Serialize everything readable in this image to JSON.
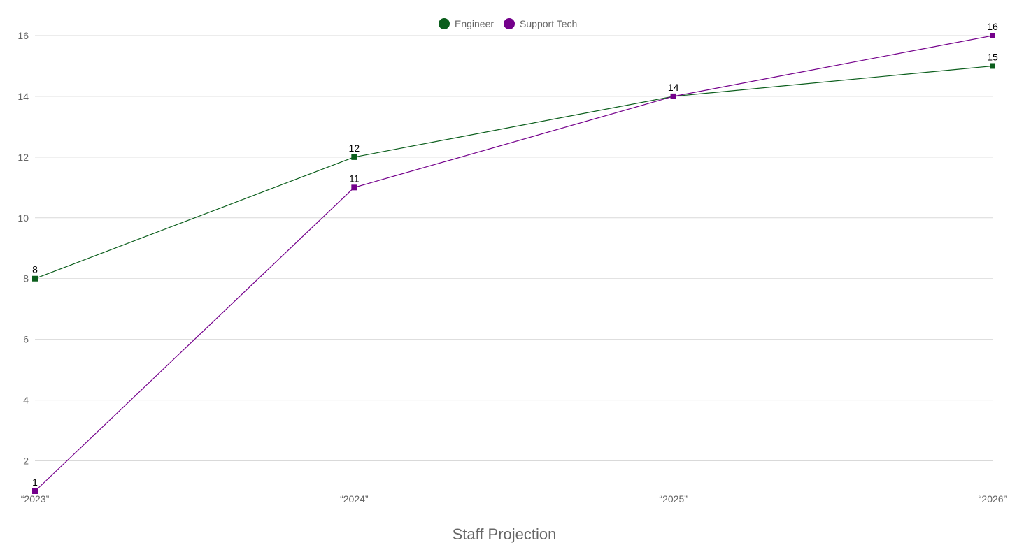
{
  "chart_data": {
    "type": "line",
    "title": "Staff Projection",
    "xlabel": "",
    "ylabel": "",
    "categories": [
      "“2023”",
      "“2024”",
      "“2025”",
      "“2026”"
    ],
    "ylim": [
      1,
      16
    ],
    "yticks": [
      2,
      4,
      6,
      8,
      10,
      12,
      14,
      16
    ],
    "grid": true,
    "legend_position": "top-center",
    "series": [
      {
        "name": "Engineer",
        "color": "#0b5e1c",
        "values": [
          8,
          12,
          14,
          15
        ]
      },
      {
        "name": "Support Tech",
        "color": "#74008b",
        "values": [
          1,
          11,
          14,
          16
        ]
      }
    ]
  }
}
